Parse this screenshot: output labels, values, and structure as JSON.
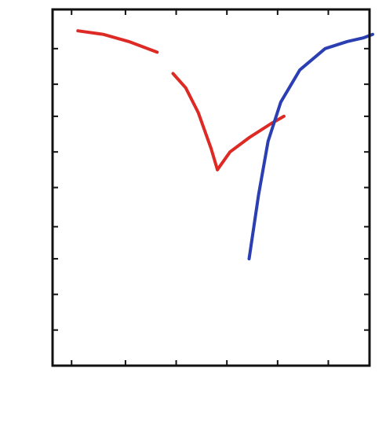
{
  "chart_data": {
    "type": "line",
    "title": "",
    "xlabel": "",
    "ylabel": "",
    "xlim": [
      0,
      10
    ],
    "ylim": [
      0,
      10
    ],
    "grid": false,
    "legend": "none",
    "xticks": [
      0.6,
      2.3,
      3.9,
      5.5,
      7.1,
      8.7,
      10.3
    ],
    "yticks": [
      1.0,
      2.0,
      3.0,
      3.9,
      5.0,
      6.0,
      7.0,
      7.9,
      8.9
    ],
    "series": [
      {
        "color": "#dd2a24",
        "segments": [
          {
            "x": [
              0.8,
              1.6,
              2.4,
              3.3
            ],
            "y": [
              9.4,
              9.3,
              9.1,
              8.8
            ]
          },
          {
            "x": [
              3.8,
              4.2,
              4.6,
              5.0,
              5.2
            ],
            "y": [
              8.2,
              7.8,
              7.1,
              6.1,
              5.5
            ]
          },
          {
            "x": [
              5.2,
              5.6,
              6.2,
              6.9,
              7.3
            ],
            "y": [
              5.5,
              6.0,
              6.4,
              6.8,
              7.0
            ]
          }
        ]
      },
      {
        "color": "#2b3fb3",
        "segments": [
          {
            "x": [
              6.2,
              6.5,
              6.8,
              7.2,
              7.8,
              8.6,
              9.3,
              9.8,
              10.1
            ],
            "y": [
              3.0,
              4.8,
              6.3,
              7.4,
              8.3,
              8.9,
              9.1,
              9.2,
              9.3
            ]
          }
        ]
      }
    ]
  }
}
